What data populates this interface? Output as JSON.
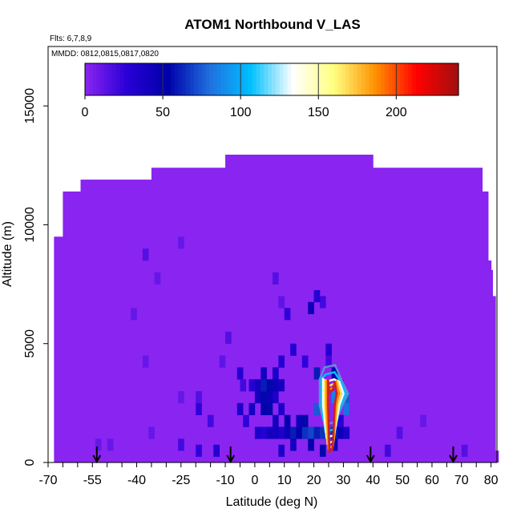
{
  "title": "ATOM1 Northbound V_LAS",
  "flights_label": "Flts: 6,7,8,9",
  "dates_label": "MMDD: 0812,0815,0817,0820",
  "chart_data": {
    "type": "heatmap",
    "title": "ATOM1 Northbound V_LAS",
    "xlabel": "Latitude (deg N)",
    "ylabel": "Altitude (m)",
    "xlim": [
      -70,
      82
    ],
    "ylim": [
      0,
      17500
    ],
    "x_ticks": [
      -70,
      -55,
      -40,
      -25,
      -10,
      0,
      10,
      20,
      30,
      40,
      50,
      60,
      70,
      80
    ],
    "y_ticks": [
      0,
      5000,
      10000,
      15000
    ],
    "colorbar": {
      "ticks": [
        0,
        50,
        100,
        150,
        200
      ],
      "range": [
        0,
        240
      ],
      "colors": [
        "#8a24f0",
        "#2a00d8",
        "#0000a8",
        "#1f6fe0",
        "#00c0ff",
        "#ffffff",
        "#ffff80",
        "#ff9000",
        "#ff0000",
        "#a01010"
      ]
    },
    "background_value": 0,
    "coverage_envelope": [
      [
        -68,
        0,
        9500
      ],
      [
        -65,
        0,
        11400
      ],
      [
        -59,
        0,
        11900
      ],
      [
        -35,
        0,
        12400
      ],
      [
        -10,
        0,
        12950
      ],
      [
        40,
        0,
        12400
      ],
      [
        77,
        0,
        11400
      ],
      [
        79,
        0,
        8500
      ],
      [
        80,
        0,
        8100
      ],
      [
        80.5,
        0,
        7000
      ],
      [
        81.5,
        0,
        500
      ]
    ],
    "cells": [
      [
        -14,
        250,
        30
      ],
      [
        -20,
        250,
        25
      ],
      [
        -26,
        500,
        20
      ],
      [
        -50,
        500,
        10
      ],
      [
        0,
        1000,
        35
      ],
      [
        2,
        1000,
        30
      ],
      [
        4,
        1000,
        40
      ],
      [
        6,
        1000,
        40
      ],
      [
        8,
        1000,
        35
      ],
      [
        10,
        1000,
        45
      ],
      [
        12,
        1000,
        60
      ],
      [
        14,
        1000,
        50
      ],
      [
        16,
        1000,
        65
      ],
      [
        18,
        1000,
        70
      ],
      [
        20,
        1000,
        60
      ],
      [
        22,
        1000,
        65
      ],
      [
        24,
        1000,
        70
      ],
      [
        26,
        1000,
        60
      ],
      [
        28,
        1000,
        45
      ],
      [
        30,
        1000,
        35
      ],
      [
        6,
        1500,
        40
      ],
      [
        10,
        1500,
        50
      ],
      [
        14,
        1500,
        45
      ],
      [
        16,
        1500,
        55
      ],
      [
        -6,
        2000,
        35
      ],
      [
        -2,
        2000,
        40
      ],
      [
        2,
        2000,
        50
      ],
      [
        4,
        2000,
        55
      ],
      [
        8,
        2000,
        35
      ],
      [
        0,
        2500,
        40
      ],
      [
        2,
        2500,
        55
      ],
      [
        4,
        2500,
        45
      ],
      [
        6,
        2500,
        35
      ],
      [
        -2,
        3000,
        30
      ],
      [
        0,
        3000,
        40
      ],
      [
        2,
        3000,
        60
      ],
      [
        4,
        3000,
        55
      ],
      [
        6,
        3000,
        45
      ],
      [
        8,
        3000,
        40
      ],
      [
        -6,
        3500,
        30
      ],
      [
        2,
        3500,
        40
      ],
      [
        6,
        3500,
        35
      ],
      [
        -16,
        1500,
        20
      ],
      [
        -20,
        2000,
        25
      ],
      [
        8,
        4000,
        30
      ],
      [
        12,
        4500,
        30
      ],
      [
        16,
        4000,
        25
      ],
      [
        24,
        4500,
        30
      ],
      [
        20,
        2000,
        75
      ],
      [
        22,
        2500,
        80
      ],
      [
        26,
        2500,
        85
      ],
      [
        28,
        3000,
        70
      ],
      [
        30,
        2500,
        75
      ],
      [
        30,
        2000,
        80
      ],
      [
        20,
        3500,
        60
      ],
      [
        26,
        3500,
        55
      ],
      [
        18,
        500,
        50
      ],
      [
        22,
        250,
        55
      ],
      [
        26,
        500,
        45
      ],
      [
        12,
        500,
        40
      ],
      [
        8,
        250,
        35
      ],
      [
        10,
        6000,
        25
      ],
      [
        22,
        6500,
        20
      ],
      [
        -10,
        5000,
        15
      ],
      [
        6,
        7500,
        15
      ],
      [
        24,
        4000,
        20
      ],
      [
        -38,
        8500,
        15
      ],
      [
        -34,
        7500,
        10
      ],
      [
        -42,
        6000,
        10
      ],
      [
        -38,
        4000,
        10
      ],
      [
        -26,
        2500,
        10
      ],
      [
        -5,
        3000,
        20
      ],
      [
        -4,
        1500,
        25
      ],
      [
        28,
        1500,
        30
      ],
      [
        48,
        1000,
        15
      ],
      [
        56,
        1500,
        10
      ],
      [
        -54,
        500,
        10
      ],
      [
        -36,
        1000,
        10
      ],
      [
        70,
        250,
        15
      ],
      [
        44,
        250,
        20
      ],
      [
        -20,
        2500,
        15
      ],
      [
        -12,
        4000,
        12
      ],
      [
        -26,
        9000,
        10
      ],
      [
        8,
        6500,
        12
      ],
      [
        20,
        6750,
        30
      ],
      [
        18,
        6250,
        45
      ]
    ],
    "contour_peak": {
      "x": 26,
      "y": 2900,
      "value": 210
    },
    "arrow_latitudes": [
      -53.5,
      -8.2,
      39.2,
      67.2
    ]
  }
}
